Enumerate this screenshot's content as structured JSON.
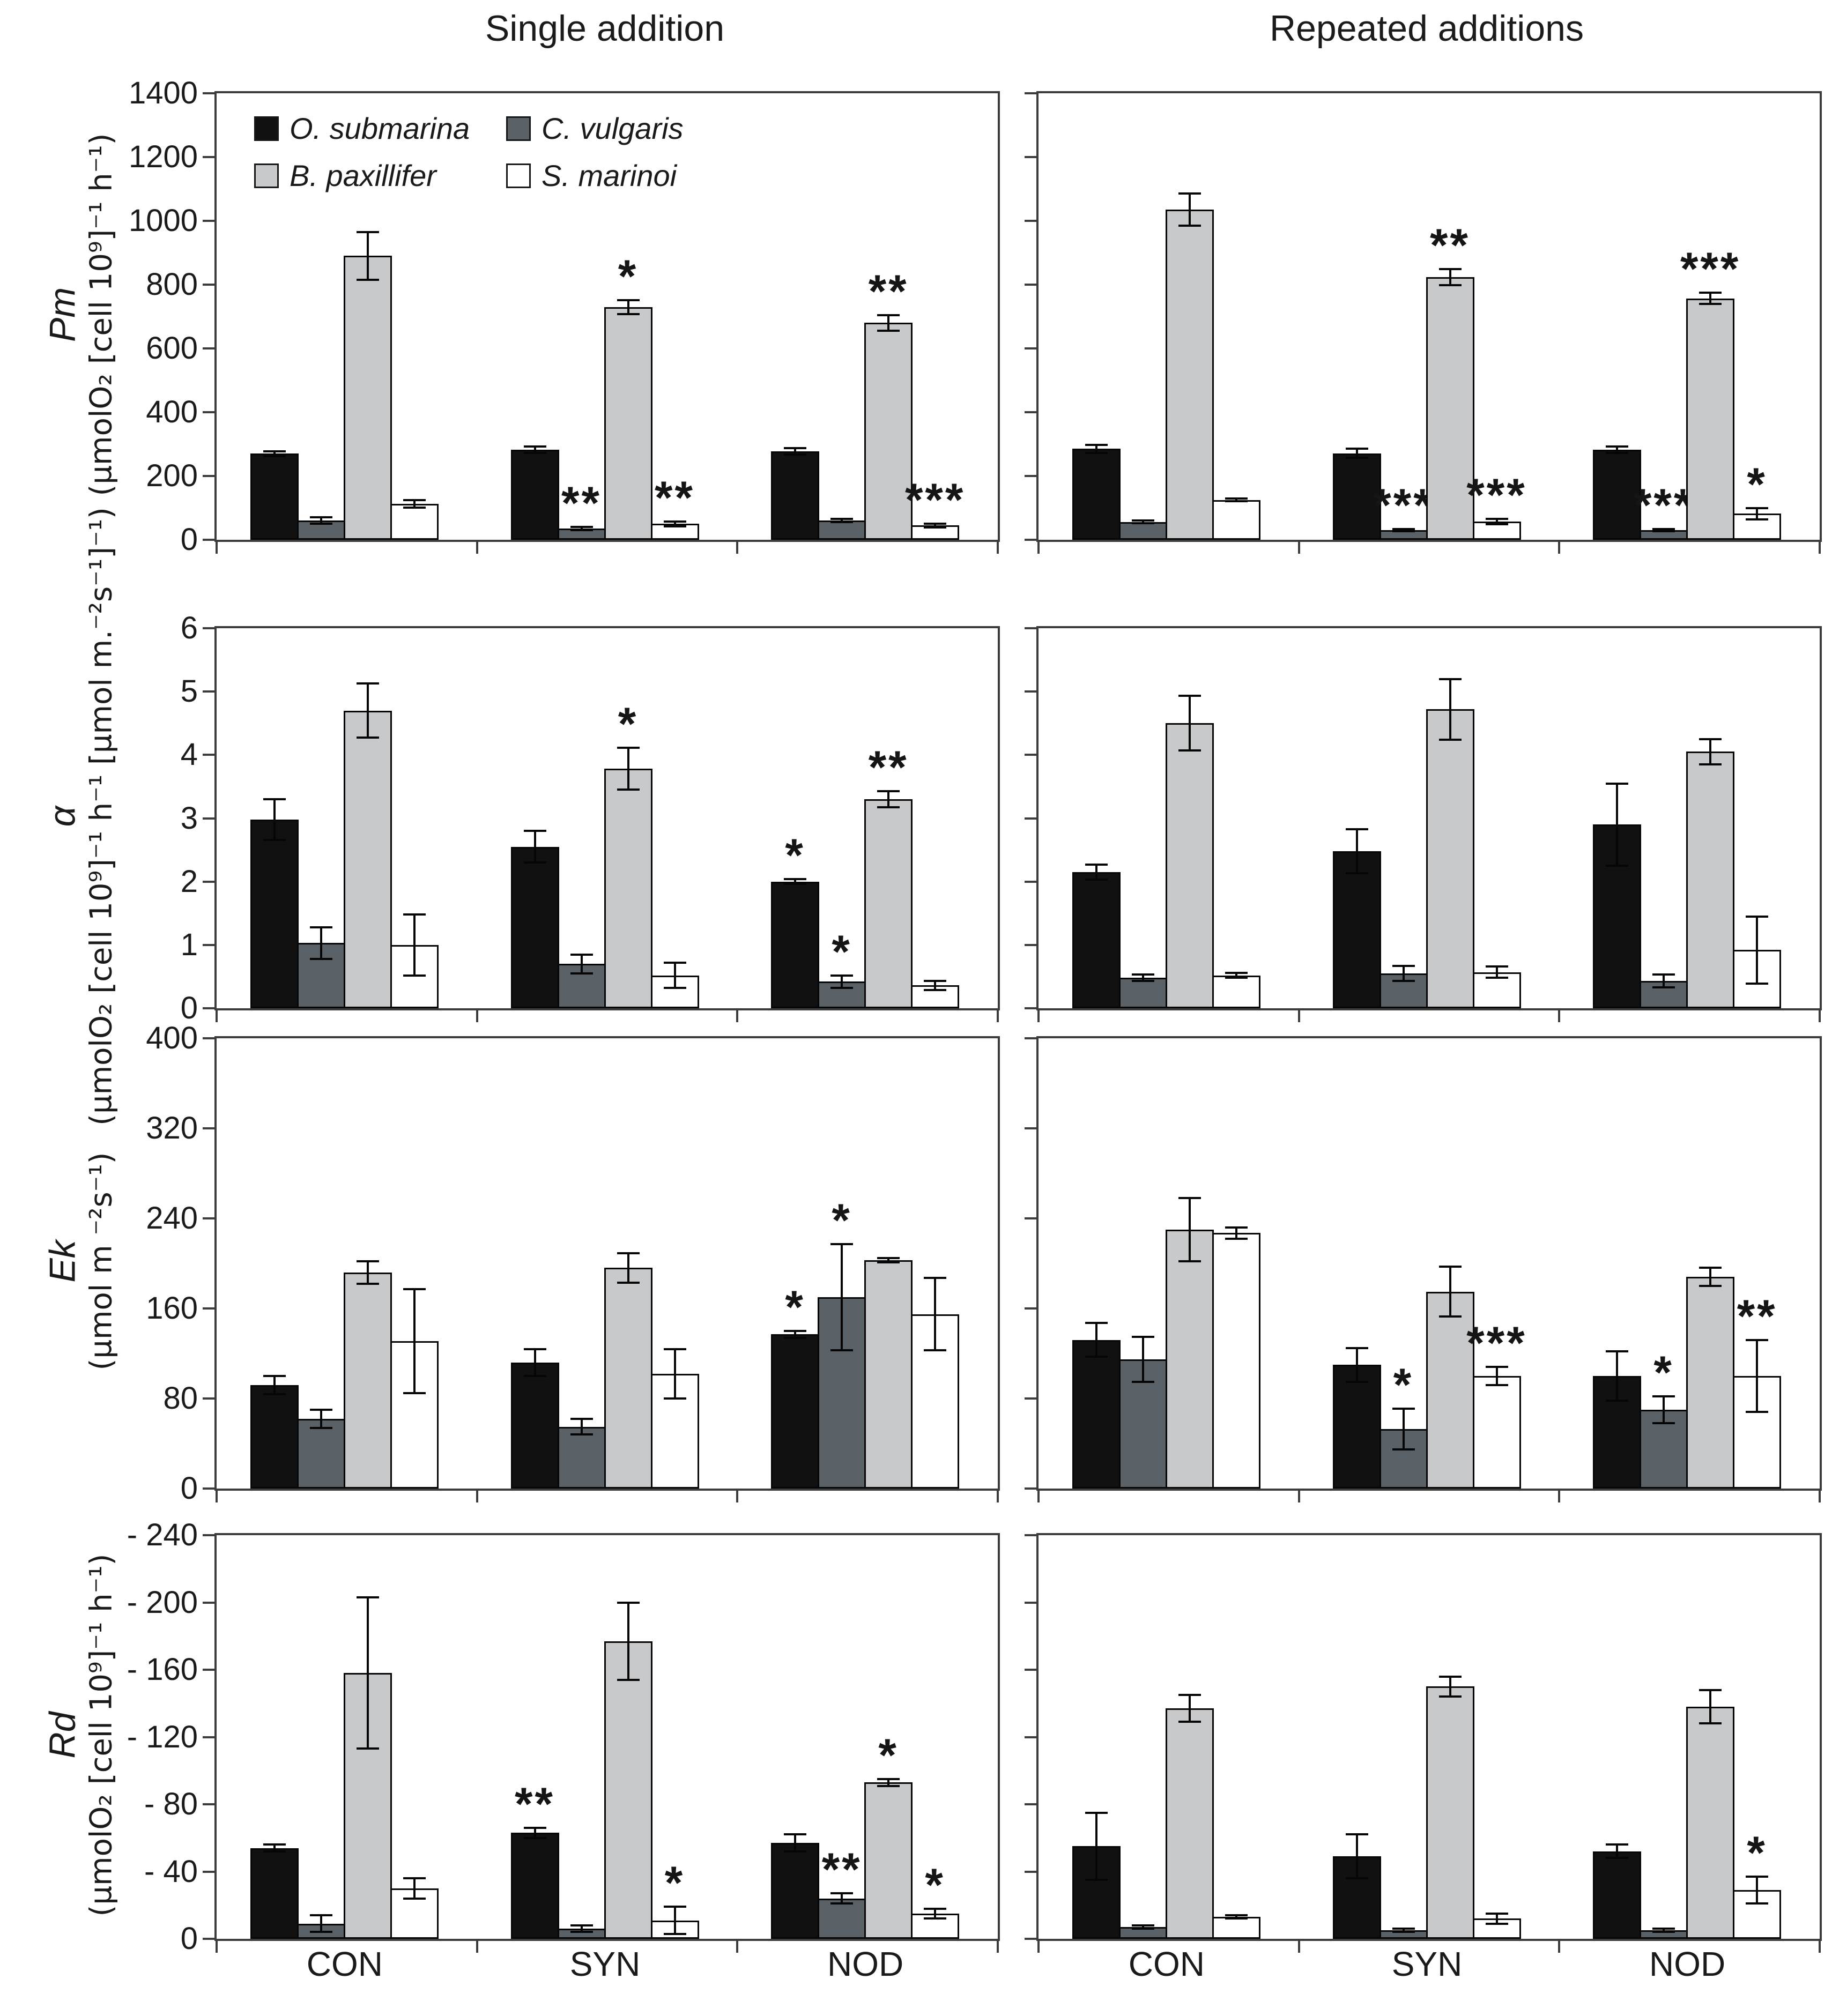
{
  "figure": {
    "column_titles": [
      "Single addition",
      "Repeated additions"
    ],
    "group_labels": [
      "CON",
      "SYN",
      "NOD"
    ],
    "legend": [
      {
        "species": "O. submarina",
        "color": "#111111"
      },
      {
        "species": "C. vulgaris",
        "color": "#5b6267"
      },
      {
        "species": "B. paxillifer",
        "color": "#c7c9cb"
      },
      {
        "species": "S. marinoi",
        "color": "#ffffff"
      }
    ],
    "colors": {
      "axis": "#3c3c3c",
      "bar_border": "#060606",
      "text": "#1a1a1a"
    }
  },
  "chart_data": {
    "type": "bar",
    "columns": [
      "Single addition",
      "Repeated additions"
    ],
    "categories": [
      "CON",
      "SYN",
      "NOD"
    ],
    "series_names": [
      "O. submarina",
      "C. vulgaris",
      "B. paxillifer",
      "S. marinoi"
    ],
    "legend_position": "top-left of first panel",
    "grid": false,
    "error_bars": "plus-minus with caps",
    "significance_note": "asterisks above bars mark significant differences",
    "rows": [
      {
        "id": "pm",
        "param": "Pm",
        "unit": "(µmolO₂ [cell 10⁹]⁻¹ h⁻¹)",
        "ymax": 1400,
        "yticks": [
          {
            "v": 0,
            "label": "0"
          },
          {
            "v": 200,
            "label": "200"
          },
          {
            "v": 400,
            "label": "400"
          },
          {
            "v": 600,
            "label": "600"
          },
          {
            "v": 800,
            "label": "800"
          },
          {
            "v": 1000,
            "label": "1000"
          },
          {
            "v": 1200,
            "label": "1200"
          },
          {
            "v": 1400,
            "label": "1400"
          }
        ],
        "panels": [
          {
            "column": "Single addition",
            "groups": [
              [
                {
                  "value": 270,
                  "err": 8,
                  "sig": ""
                },
                {
                  "value": 60,
                  "err": 10,
                  "sig": ""
                },
                {
                  "value": 890,
                  "err": 75,
                  "sig": ""
                },
                {
                  "value": 113,
                  "err": 12,
                  "sig": ""
                }
              ],
              [
                {
                  "value": 283,
                  "err": 10,
                  "sig": ""
                },
                {
                  "value": 35,
                  "err": 5,
                  "sig": "**"
                },
                {
                  "value": 730,
                  "err": 22,
                  "sig": "*"
                },
                {
                  "value": 50,
                  "err": 8,
                  "sig": "**"
                }
              ],
              [
                {
                  "value": 277,
                  "err": 10,
                  "sig": ""
                },
                {
                  "value": 60,
                  "err": 5,
                  "sig": ""
                },
                {
                  "value": 680,
                  "err": 25,
                  "sig": "**"
                },
                {
                  "value": 45,
                  "err": 6,
                  "sig": "***"
                }
              ]
            ]
          },
          {
            "column": "Repeated additions",
            "groups": [
              [
                {
                  "value": 285,
                  "err": 12,
                  "sig": ""
                },
                {
                  "value": 56,
                  "err": 4,
                  "sig": ""
                },
                {
                  "value": 1035,
                  "err": 50,
                  "sig": ""
                },
                {
                  "value": 125,
                  "err": 4,
                  "sig": ""
                }
              ],
              [
                {
                  "value": 271,
                  "err": 14,
                  "sig": ""
                },
                {
                  "value": 30,
                  "err": 3,
                  "sig": "***"
                },
                {
                  "value": 824,
                  "err": 25,
                  "sig": "**"
                },
                {
                  "value": 57,
                  "err": 8,
                  "sig": "***"
                }
              ],
              [
                {
                  "value": 283,
                  "err": 10,
                  "sig": ""
                },
                {
                  "value": 30,
                  "err": 3,
                  "sig": "***"
                },
                {
                  "value": 757,
                  "err": 18,
                  "sig": "***"
                },
                {
                  "value": 82,
                  "err": 18,
                  "sig": "*"
                }
              ]
            ]
          }
        ]
      },
      {
        "id": "alpha",
        "param": "α",
        "unit": "(µmolO₂ [cell 10⁹]⁻¹ h⁻¹ [µmol m.⁻²s⁻¹]⁻¹)",
        "ymax": 6,
        "yticks": [
          {
            "v": 0,
            "label": "0"
          },
          {
            "v": 1,
            "label": "1"
          },
          {
            "v": 2,
            "label": "2"
          },
          {
            "v": 3,
            "label": "3"
          },
          {
            "v": 4,
            "label": "4"
          },
          {
            "v": 5,
            "label": "5"
          },
          {
            "v": 6,
            "label": "6"
          }
        ],
        "panels": [
          {
            "column": "Single addition",
            "groups": [
              [
                {
                  "value": 2.98,
                  "err": 0.32,
                  "sig": ""
                },
                {
                  "value": 1.03,
                  "err": 0.25,
                  "sig": ""
                },
                {
                  "value": 4.7,
                  "err": 0.43,
                  "sig": ""
                },
                {
                  "value": 1.0,
                  "err": 0.48,
                  "sig": ""
                }
              ],
              [
                {
                  "value": 2.55,
                  "err": 0.25,
                  "sig": ""
                },
                {
                  "value": 0.7,
                  "err": 0.15,
                  "sig": ""
                },
                {
                  "value": 3.78,
                  "err": 0.33,
                  "sig": "*"
                },
                {
                  "value": 0.52,
                  "err": 0.2,
                  "sig": ""
                }
              ],
              [
                {
                  "value": 2.0,
                  "err": 0.04,
                  "sig": "*"
                },
                {
                  "value": 0.42,
                  "err": 0.1,
                  "sig": "*"
                },
                {
                  "value": 3.3,
                  "err": 0.13,
                  "sig": "**"
                },
                {
                  "value": 0.36,
                  "err": 0.07,
                  "sig": ""
                }
              ]
            ]
          },
          {
            "column": "Repeated additions",
            "groups": [
              [
                {
                  "value": 2.15,
                  "err": 0.12,
                  "sig": ""
                },
                {
                  "value": 0.48,
                  "err": 0.05,
                  "sig": ""
                },
                {
                  "value": 4.5,
                  "err": 0.43,
                  "sig": ""
                },
                {
                  "value": 0.52,
                  "err": 0.04,
                  "sig": ""
                }
              ],
              [
                {
                  "value": 2.48,
                  "err": 0.35,
                  "sig": ""
                },
                {
                  "value": 0.55,
                  "err": 0.12,
                  "sig": ""
                },
                {
                  "value": 4.72,
                  "err": 0.48,
                  "sig": ""
                },
                {
                  "value": 0.57,
                  "err": 0.09,
                  "sig": ""
                }
              ],
              [
                {
                  "value": 2.9,
                  "err": 0.65,
                  "sig": ""
                },
                {
                  "value": 0.43,
                  "err": 0.1,
                  "sig": ""
                },
                {
                  "value": 4.05,
                  "err": 0.2,
                  "sig": ""
                },
                {
                  "value": 0.92,
                  "err": 0.53,
                  "sig": ""
                }
              ]
            ]
          }
        ]
      },
      {
        "id": "ek",
        "param": "Ek",
        "unit": "(µmol m ⁻²s⁻¹)",
        "ymax": 400,
        "yticks": [
          {
            "v": 0,
            "label": "0"
          },
          {
            "v": 80,
            "label": "80"
          },
          {
            "v": 160,
            "label": "160"
          },
          {
            "v": 240,
            "label": "240"
          },
          {
            "v": 320,
            "label": "320"
          },
          {
            "v": 400,
            "label": "400"
          }
        ],
        "panels": [
          {
            "column": "Single addition",
            "groups": [
              [
                {
                  "value": 92,
                  "err": 8,
                  "sig": ""
                },
                {
                  "value": 62,
                  "err": 8,
                  "sig": ""
                },
                {
                  "value": 192,
                  "err": 10,
                  "sig": ""
                },
                {
                  "value": 131,
                  "err": 46,
                  "sig": ""
                }
              ],
              [
                {
                  "value": 112,
                  "err": 12,
                  "sig": ""
                },
                {
                  "value": 55,
                  "err": 7,
                  "sig": ""
                },
                {
                  "value": 196,
                  "err": 13,
                  "sig": ""
                },
                {
                  "value": 102,
                  "err": 22,
                  "sig": ""
                }
              ],
              [
                {
                  "value": 137,
                  "err": 3,
                  "sig": "*"
                },
                {
                  "value": 170,
                  "err": 47,
                  "sig": "*"
                },
                {
                  "value": 203,
                  "err": 2,
                  "sig": ""
                },
                {
                  "value": 155,
                  "err": 32,
                  "sig": ""
                }
              ]
            ]
          },
          {
            "column": "Repeated additions",
            "groups": [
              [
                {
                  "value": 132,
                  "err": 15,
                  "sig": ""
                },
                {
                  "value": 115,
                  "err": 20,
                  "sig": ""
                },
                {
                  "value": 230,
                  "err": 28,
                  "sig": ""
                },
                {
                  "value": 227,
                  "err": 5,
                  "sig": ""
                }
              ],
              [
                {
                  "value": 110,
                  "err": 15,
                  "sig": ""
                },
                {
                  "value": 53,
                  "err": 18,
                  "sig": "*"
                },
                {
                  "value": 175,
                  "err": 22,
                  "sig": ""
                },
                {
                  "value": 100,
                  "err": 8,
                  "sig": "***"
                }
              ],
              [
                {
                  "value": 100,
                  "err": 22,
                  "sig": ""
                },
                {
                  "value": 70,
                  "err": 12,
                  "sig": "*"
                },
                {
                  "value": 188,
                  "err": 8,
                  "sig": ""
                },
                {
                  "value": 100,
                  "err": 32,
                  "sig": "**"
                }
              ]
            ]
          }
        ]
      },
      {
        "id": "rd",
        "param": "Rd",
        "unit": "(µmolO₂ [cell 10⁹]⁻¹ h⁻¹)",
        "ymax": 240,
        "axis_note": "values are negative (dark respiration); axis shown 0 at bottom to -240 at top",
        "yticks": [
          {
            "v": 0,
            "label": "0"
          },
          {
            "v": 40,
            "label": "- 40"
          },
          {
            "v": 80,
            "label": "- 80"
          },
          {
            "v": 120,
            "label": "- 120"
          },
          {
            "v": 160,
            "label": "- 160"
          },
          {
            "v": 200,
            "label": "- 200"
          },
          {
            "v": 240,
            "label": "- 240"
          }
        ],
        "panels": [
          {
            "column": "Single addition",
            "groups": [
              [
                {
                  "value": 54,
                  "err": 2,
                  "sig": ""
                },
                {
                  "value": 9,
                  "err": 5,
                  "sig": ""
                },
                {
                  "value": 158,
                  "err": 45,
                  "sig": ""
                },
                {
                  "value": 30,
                  "err": 6,
                  "sig": ""
                }
              ],
              [
                {
                  "value": 63,
                  "err": 3,
                  "sig": "**"
                },
                {
                  "value": 6,
                  "err": 2,
                  "sig": ""
                },
                {
                  "value": 177,
                  "err": 23,
                  "sig": ""
                },
                {
                  "value": 11,
                  "err": 8,
                  "sig": "*"
                }
              ],
              [
                {
                  "value": 57,
                  "err": 5,
                  "sig": ""
                },
                {
                  "value": 24,
                  "err": 3,
                  "sig": "**"
                },
                {
                  "value": 93,
                  "err": 2,
                  "sig": "*"
                },
                {
                  "value": 15,
                  "err": 3,
                  "sig": "*"
                }
              ]
            ]
          },
          {
            "column": "Repeated additions",
            "groups": [
              [
                {
                  "value": 55,
                  "err": 20,
                  "sig": ""
                },
                {
                  "value": 7,
                  "err": 1,
                  "sig": ""
                },
                {
                  "value": 137,
                  "err": 8,
                  "sig": ""
                },
                {
                  "value": 13,
                  "err": 1,
                  "sig": ""
                }
              ],
              [
                {
                  "value": 49,
                  "err": 13,
                  "sig": ""
                },
                {
                  "value": 5,
                  "err": 1,
                  "sig": ""
                },
                {
                  "value": 150,
                  "err": 6,
                  "sig": ""
                },
                {
                  "value": 12,
                  "err": 3,
                  "sig": ""
                }
              ],
              [
                {
                  "value": 52,
                  "err": 4,
                  "sig": ""
                },
                {
                  "value": 5,
                  "err": 1,
                  "sig": ""
                },
                {
                  "value": 138,
                  "err": 10,
                  "sig": ""
                },
                {
                  "value": 29,
                  "err": 8,
                  "sig": "*"
                }
              ]
            ]
          }
        ]
      }
    ]
  }
}
